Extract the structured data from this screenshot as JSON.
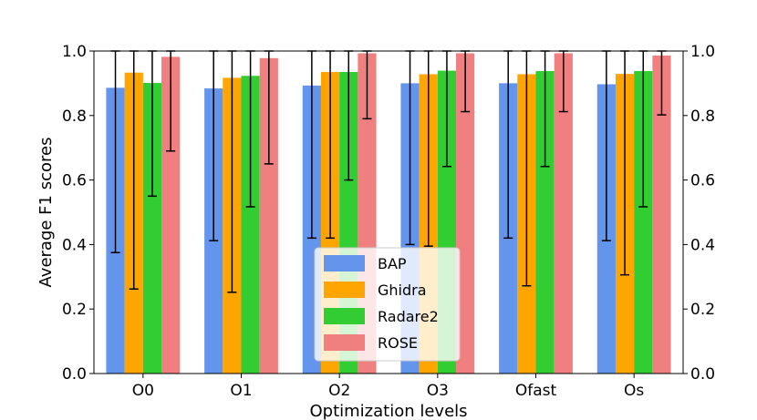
{
  "chart_data": {
    "type": "bar",
    "title": "",
    "xlabel": "Optimization levels",
    "ylabel": "Average F1 scores",
    "ylim": [
      0.0,
      1.0
    ],
    "yticks": [
      "0.0",
      "0.2",
      "0.4",
      "0.6",
      "0.8",
      "1.0"
    ],
    "ytick_values": [
      0.0,
      0.2,
      0.4,
      0.6,
      0.8,
      1.0
    ],
    "secondary_y_axis": true,
    "grid": false,
    "legend_position": "lower-center",
    "categories": [
      "O0",
      "O1",
      "O2",
      "O3",
      "Ofast",
      "Os"
    ],
    "series": [
      {
        "name": "BAP",
        "color": "#6495ED",
        "values": [
          0.886,
          0.884,
          0.893,
          0.9,
          0.9,
          0.897
        ],
        "err_low": [
          0.375,
          0.412,
          0.42,
          0.4,
          0.42,
          0.412
        ],
        "err_high": [
          1.0,
          1.0,
          1.0,
          1.0,
          1.0,
          1.0
        ]
      },
      {
        "name": "Ghidra",
        "color": "#FFA500",
        "values": [
          0.933,
          0.917,
          0.935,
          0.928,
          0.928,
          0.929
        ],
        "err_low": [
          0.262,
          0.252,
          0.42,
          0.395,
          0.272,
          0.306
        ],
        "err_high": [
          1.0,
          1.0,
          1.0,
          1.0,
          1.0,
          1.0
        ]
      },
      {
        "name": "Radare2",
        "color": "#32CD32",
        "values": [
          0.901,
          0.923,
          0.935,
          0.939,
          0.938,
          0.938
        ],
        "err_low": [
          0.55,
          0.517,
          0.6,
          0.642,
          0.642,
          0.517
        ],
        "err_high": [
          1.0,
          1.0,
          1.0,
          1.0,
          1.0,
          1.0
        ]
      },
      {
        "name": "ROSE",
        "color": "#F08080",
        "values": [
          0.982,
          0.978,
          0.993,
          0.993,
          0.993,
          0.986
        ],
        "err_low": [
          0.69,
          0.65,
          0.79,
          0.812,
          0.812,
          0.802
        ],
        "err_high": [
          1.0,
          1.0,
          1.0,
          1.0,
          1.0,
          1.0
        ]
      }
    ]
  }
}
